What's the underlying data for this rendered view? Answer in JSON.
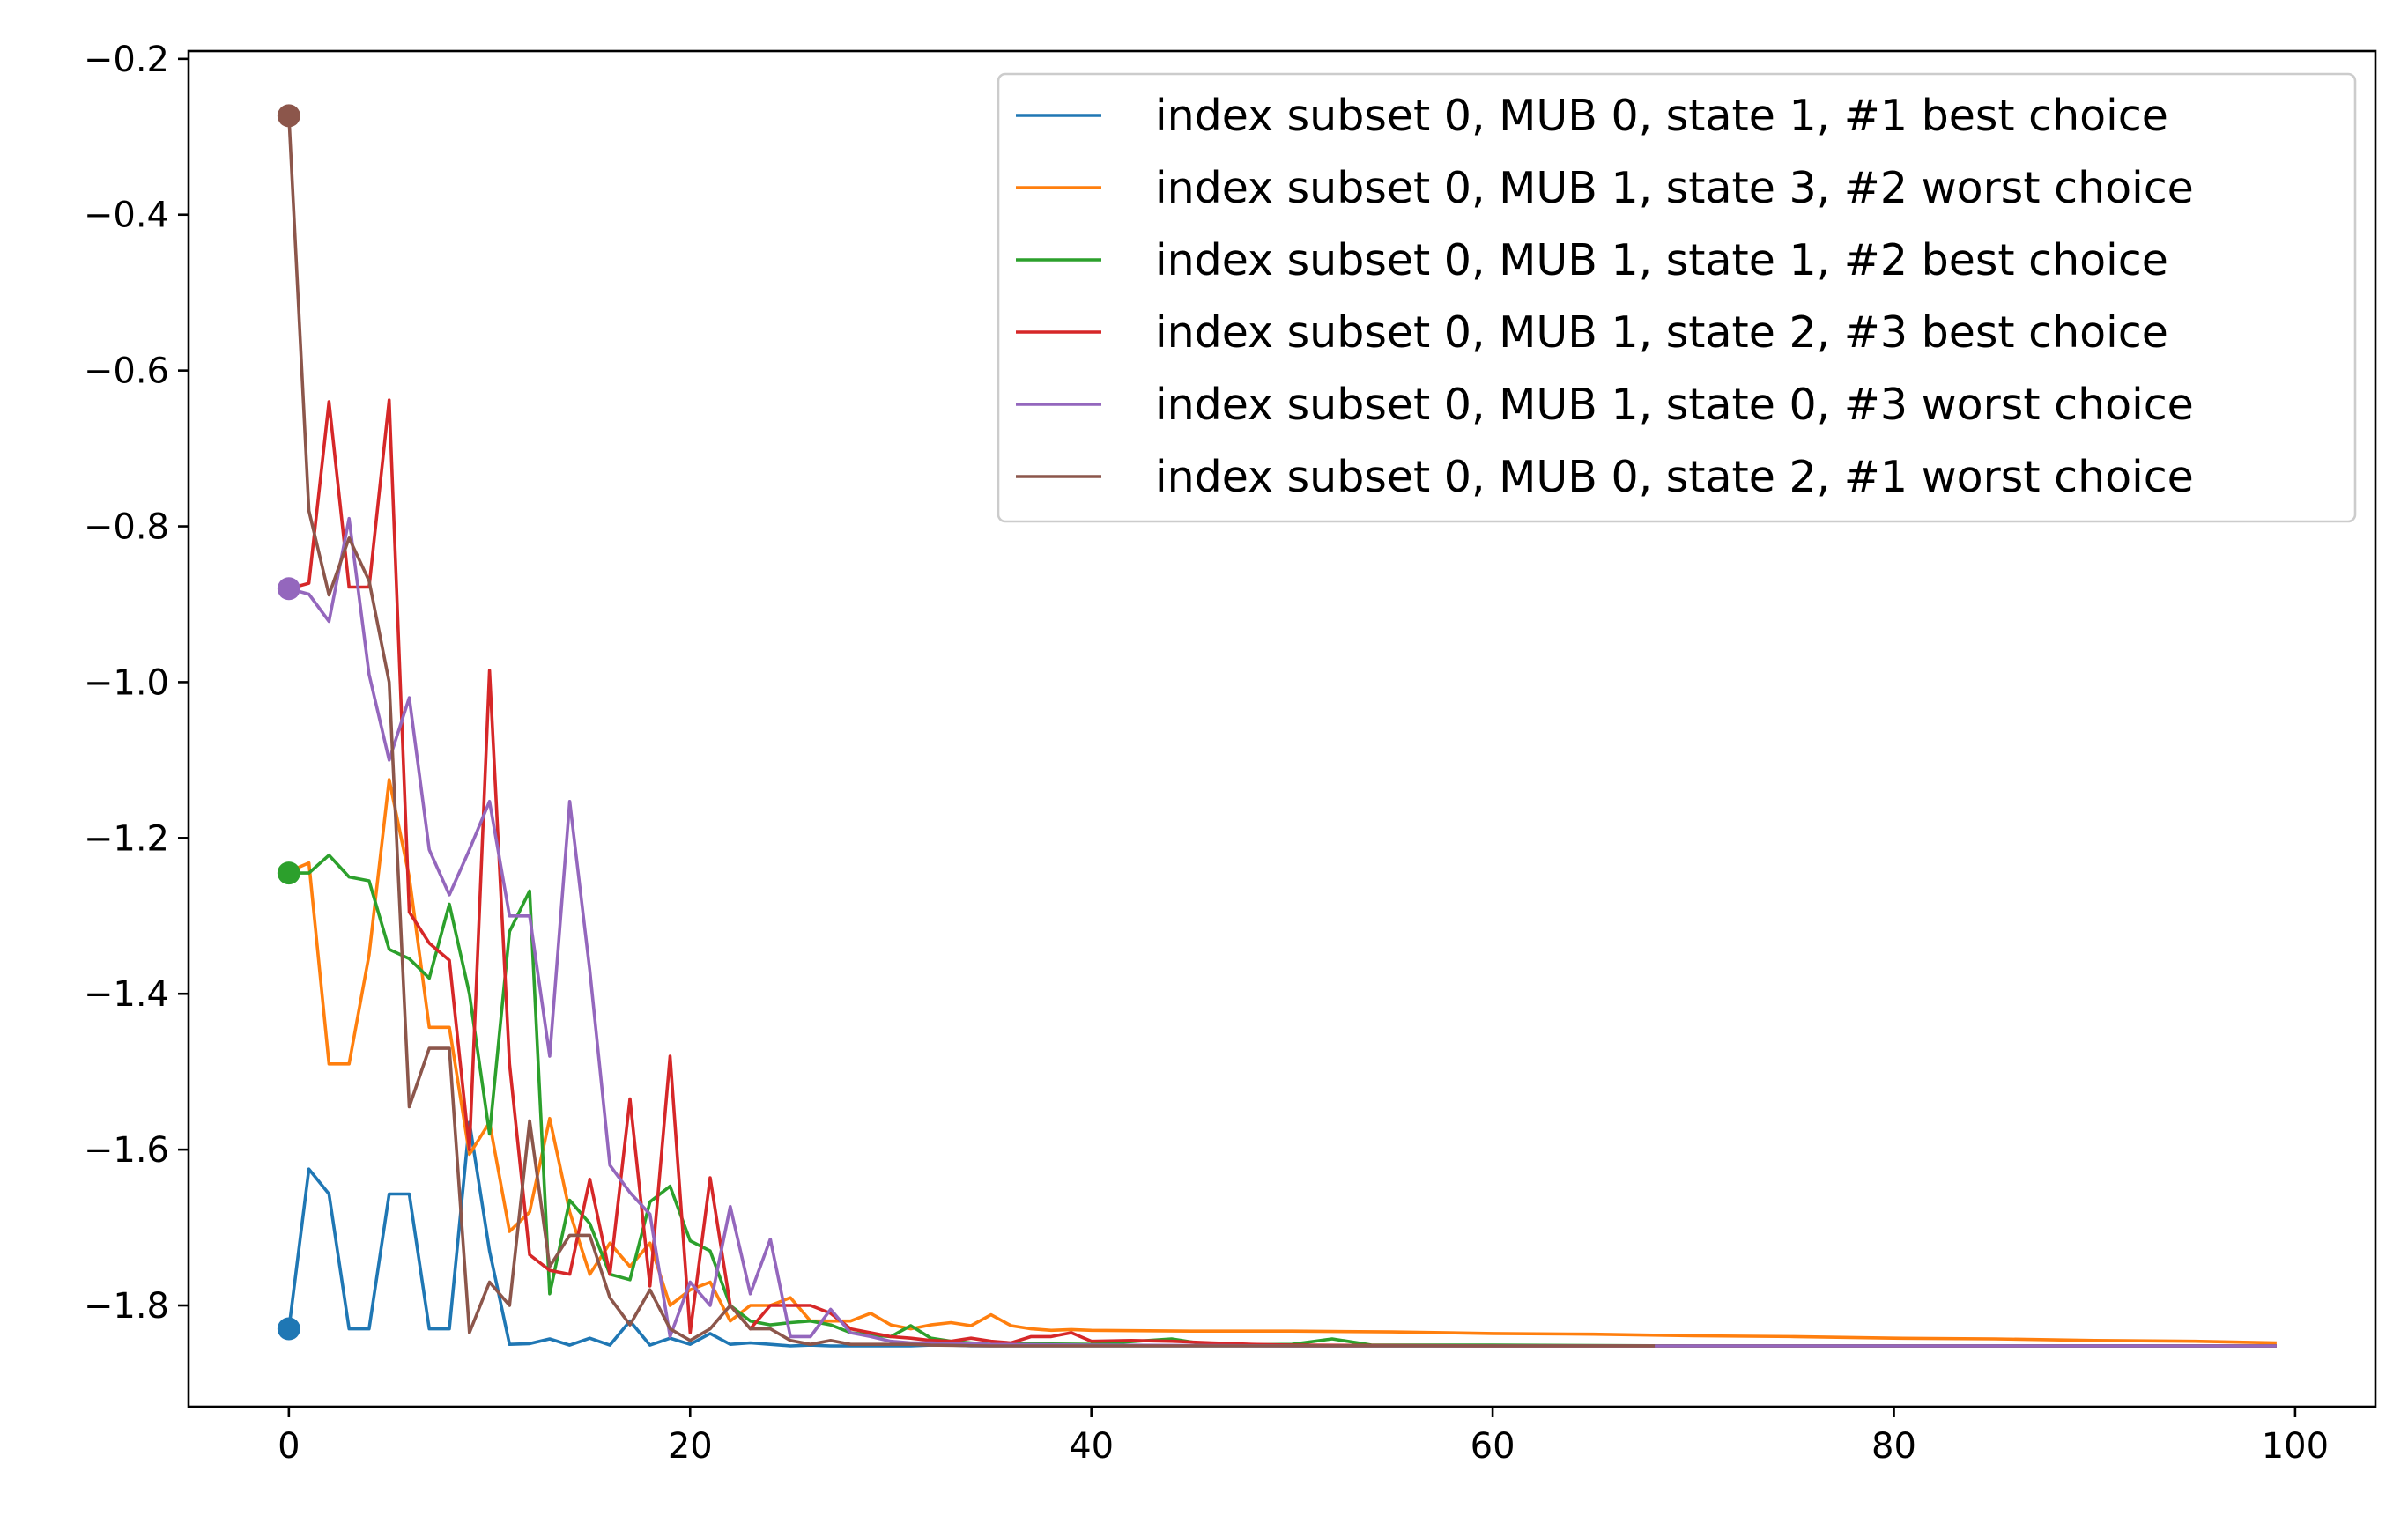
{
  "chart_data": {
    "type": "line",
    "title": "",
    "xlabel": "",
    "ylabel": "",
    "xlim": [
      -5,
      104
    ],
    "ylim": [
      -1.93,
      -0.19
    ],
    "x_ticks": [
      0,
      20,
      40,
      60,
      80,
      100
    ],
    "x_tick_labels": [
      "0",
      "20",
      "40",
      "60",
      "80",
      "100"
    ],
    "y_ticks": [
      -0.2,
      -0.4,
      -0.6,
      -0.8,
      -1.0,
      -1.2,
      -1.4,
      -1.6,
      -1.8
    ],
    "y_tick_labels": [
      "−0.2",
      "−0.4",
      "−0.6",
      "−0.8",
      "−1.0",
      "−1.2",
      "−1.4",
      "−1.6",
      "−1.8"
    ],
    "grid": false,
    "legend_position": "top-right",
    "series": [
      {
        "name": "index subset 0, MUB 0, state 1, #1 best choice",
        "color": "#1f77b4",
        "x": [
          0,
          1,
          2,
          3,
          4,
          5,
          6,
          7,
          8,
          9,
          10,
          11,
          12,
          13,
          14,
          15,
          16,
          17,
          18,
          19,
          20,
          21,
          22,
          23,
          24,
          25,
          26,
          27,
          28,
          29,
          30,
          31,
          32,
          33,
          34,
          35,
          36,
          37,
          38,
          39,
          40,
          41,
          42,
          43,
          44,
          45,
          46,
          47,
          48,
          49,
          50,
          55,
          60,
          65,
          70,
          75,
          80,
          85,
          90,
          95,
          99
        ],
        "y": [
          -1.83,
          -1.625,
          -1.657,
          -1.83,
          -1.83,
          -1.657,
          -1.657,
          -1.83,
          -1.83,
          -1.565,
          -1.73,
          -1.85,
          -1.849,
          -1.843,
          -1.851,
          -1.842,
          -1.851,
          -1.82,
          -1.851,
          -1.842,
          -1.85,
          -1.836,
          -1.85,
          -1.848,
          -1.85,
          -1.852,
          -1.851,
          -1.852,
          -1.852,
          -1.852,
          -1.852,
          -1.852,
          -1.851,
          -1.851,
          -1.852,
          -1.852,
          -1.852,
          -1.852,
          -1.852,
          -1.852,
          -1.852,
          -1.852,
          -1.852,
          -1.852,
          -1.852,
          -1.852,
          -1.852,
          -1.852,
          -1.852,
          -1.852,
          -1.852,
          -1.852,
          -1.852,
          -1.852,
          -1.852,
          -1.852,
          -1.852,
          -1.852,
          -1.852,
          -1.852,
          -1.852
        ],
        "start_marker": true
      },
      {
        "name": "index subset 0, MUB 1, state 3, #2 worst choice",
        "color": "#ff7f0e",
        "x": [
          0,
          1,
          2,
          3,
          4,
          5,
          6,
          7,
          8,
          9,
          10,
          11,
          12,
          13,
          14,
          15,
          16,
          17,
          18,
          19,
          20,
          21,
          22,
          23,
          24,
          25,
          26,
          27,
          28,
          29,
          30,
          31,
          32,
          33,
          34,
          35,
          36,
          37,
          38,
          39,
          40,
          45,
          50,
          55,
          60,
          65,
          70,
          75,
          80,
          85,
          90,
          95,
          99
        ],
        "y": [
          -1.243,
          -1.232,
          -1.49,
          -1.49,
          -1.35,
          -1.125,
          -1.25,
          -1.443,
          -1.443,
          -1.606,
          -1.565,
          -1.705,
          -1.68,
          -1.56,
          -1.68,
          -1.76,
          -1.72,
          -1.75,
          -1.72,
          -1.8,
          -1.78,
          -1.77,
          -1.82,
          -1.8,
          -1.8,
          -1.79,
          -1.82,
          -1.82,
          -1.82,
          -1.81,
          -1.825,
          -1.83,
          -1.825,
          -1.822,
          -1.826,
          -1.812,
          -1.826,
          -1.83,
          -1.832,
          -1.831,
          -1.832,
          -1.833,
          -1.833,
          -1.834,
          -1.836,
          -1.837,
          -1.839,
          -1.84,
          -1.842,
          -1.843,
          -1.845,
          -1.846,
          -1.848
        ],
        "start_marker": false
      },
      {
        "name": "index subset 0, MUB 1, state 1, #2 best choice",
        "color": "#2ca02c",
        "x": [
          0,
          1,
          2,
          3,
          4,
          5,
          6,
          7,
          8,
          9,
          10,
          11,
          12,
          13,
          14,
          15,
          16,
          17,
          18,
          19,
          20,
          21,
          22,
          23,
          24,
          25,
          26,
          27,
          28,
          29,
          30,
          31,
          32,
          33,
          34,
          35,
          36,
          40,
          44,
          46,
          50,
          52,
          54,
          60,
          70,
          80,
          90,
          99
        ],
        "y": [
          -1.245,
          -1.245,
          -1.222,
          -1.25,
          -1.255,
          -1.343,
          -1.355,
          -1.38,
          -1.285,
          -1.4,
          -1.58,
          -1.32,
          -1.268,
          -1.785,
          -1.665,
          -1.695,
          -1.76,
          -1.767,
          -1.667,
          -1.647,
          -1.717,
          -1.73,
          -1.8,
          -1.82,
          -1.825,
          -1.822,
          -1.82,
          -1.825,
          -1.835,
          -1.838,
          -1.84,
          -1.826,
          -1.842,
          -1.846,
          -1.848,
          -1.85,
          -1.849,
          -1.85,
          -1.843,
          -1.851,
          -1.85,
          -1.843,
          -1.851,
          -1.851,
          -1.852,
          -1.852,
          -1.852,
          -1.852
        ],
        "start_marker": true
      },
      {
        "name": "index subset 0, MUB 1, state 2, #3 best choice",
        "color": "#d62728",
        "x": [
          0,
          1,
          2,
          3,
          4,
          5,
          6,
          7,
          8,
          9,
          10,
          11,
          12,
          13,
          14,
          15,
          16,
          17,
          18,
          19,
          20,
          21,
          22,
          23,
          24,
          25,
          26,
          27,
          28,
          29,
          30,
          31,
          32,
          33,
          34,
          35,
          36,
          37,
          38,
          39,
          40,
          42,
          44,
          46,
          48,
          50,
          60,
          70,
          80,
          90,
          99
        ],
        "y": [
          -0.88,
          -0.873,
          -0.64,
          -0.878,
          -0.878,
          -0.638,
          -1.295,
          -1.335,
          -1.357,
          -1.6,
          -0.985,
          -1.49,
          -1.735,
          -1.755,
          -1.76,
          -1.638,
          -1.76,
          -1.535,
          -1.775,
          -1.48,
          -1.835,
          -1.636,
          -1.8,
          -1.83,
          -1.8,
          -1.8,
          -1.8,
          -1.81,
          -1.83,
          -1.835,
          -1.84,
          -1.842,
          -1.845,
          -1.846,
          -1.842,
          -1.846,
          -1.848,
          -1.84,
          -1.84,
          -1.835,
          -1.846,
          -1.845,
          -1.846,
          -1.848,
          -1.85,
          -1.851,
          -1.852,
          -1.852,
          -1.852,
          -1.852,
          -1.852
        ],
        "start_marker": false
      },
      {
        "name": "index subset 0, MUB 1, state 0, #3 worst choice",
        "color": "#9467bd",
        "x": [
          0,
          1,
          2,
          3,
          4,
          5,
          6,
          7,
          8,
          9,
          10,
          11,
          12,
          13,
          14,
          15,
          16,
          17,
          18,
          19,
          20,
          21,
          22,
          23,
          24,
          25,
          26,
          27,
          28,
          29,
          30,
          31,
          32,
          33,
          34,
          35,
          40,
          50,
          60,
          70,
          80,
          90,
          99
        ],
        "y": [
          -0.88,
          -0.887,
          -0.922,
          -0.79,
          -0.99,
          -1.1,
          -1.02,
          -1.215,
          -1.273,
          -1.215,
          -1.153,
          -1.3,
          -1.3,
          -1.48,
          -1.153,
          -1.37,
          -1.62,
          -1.655,
          -1.683,
          -1.84,
          -1.77,
          -1.8,
          -1.673,
          -1.785,
          -1.715,
          -1.84,
          -1.84,
          -1.805,
          -1.835,
          -1.84,
          -1.846,
          -1.848,
          -1.848,
          -1.849,
          -1.849,
          -1.85,
          -1.851,
          -1.852,
          -1.852,
          -1.852,
          -1.852,
          -1.852,
          -1.852
        ],
        "start_marker": true
      },
      {
        "name": "index subset 0, MUB 0, state 2, #1 worst choice",
        "color": "#8c564b",
        "x": [
          0,
          1,
          2,
          3,
          4,
          5,
          6,
          7,
          8,
          9,
          10,
          11,
          12,
          13,
          14,
          15,
          16,
          17,
          18,
          19,
          20,
          21,
          22,
          23,
          24,
          25,
          26,
          27,
          28,
          29,
          30,
          31,
          32,
          35,
          40,
          50,
          60,
          68
        ],
        "y": [
          -0.273,
          -0.78,
          -0.888,
          -0.815,
          -0.87,
          -1.0,
          -1.545,
          -1.47,
          -1.47,
          -1.835,
          -1.77,
          -1.8,
          -1.563,
          -1.75,
          -1.71,
          -1.71,
          -1.79,
          -1.825,
          -1.78,
          -1.83,
          -1.845,
          -1.83,
          -1.8,
          -1.83,
          -1.83,
          -1.845,
          -1.85,
          -1.845,
          -1.85,
          -1.85,
          -1.85,
          -1.85,
          -1.851,
          -1.852,
          -1.852,
          -1.852,
          -1.852,
          -1.852
        ],
        "start_marker": true
      }
    ]
  }
}
